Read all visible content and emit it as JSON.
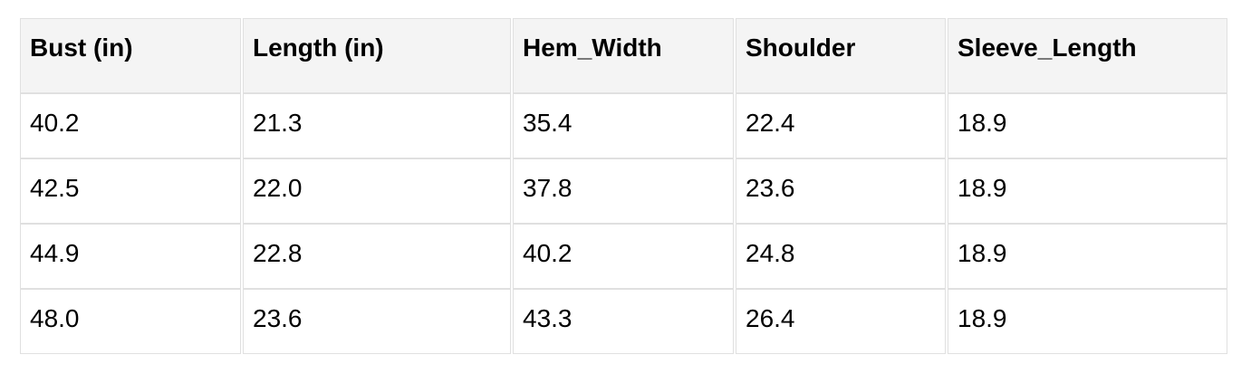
{
  "table": {
    "name": "garment-measurements-table",
    "columns": [
      {
        "label": "Bust (in)"
      },
      {
        "label": "Length (in)"
      },
      {
        "label": "Hem_Width"
      },
      {
        "label": "Shoulder"
      },
      {
        "label": "Sleeve_Length"
      }
    ],
    "rows": [
      [
        "40.2",
        "21.3",
        "35.4",
        "22.4",
        "18.9"
      ],
      [
        "42.5",
        "22.0",
        "37.8",
        "23.6",
        "18.9"
      ],
      [
        "44.9",
        "22.8",
        "40.2",
        "24.8",
        "18.9"
      ],
      [
        "48.0",
        "23.6",
        "43.3",
        "26.4",
        "18.9"
      ]
    ]
  },
  "colors": {
    "header_bg": "#f4f4f4",
    "cell_border": "#e0e0e0",
    "text": "#000000",
    "page_bg": "#ffffff"
  }
}
